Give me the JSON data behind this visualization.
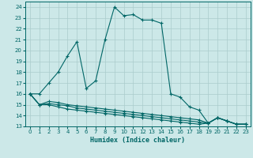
{
  "xlabel": "Humidex (Indice chaleur)",
  "bg_color": "#cce8e8",
  "grid_color": "#aacccc",
  "line_color": "#006666",
  "xlim": [
    -0.5,
    23.5
  ],
  "ylim": [
    13,
    24.5
  ],
  "xticks": [
    0,
    1,
    2,
    3,
    4,
    5,
    6,
    7,
    8,
    9,
    10,
    11,
    12,
    13,
    14,
    15,
    16,
    17,
    18,
    19,
    20,
    21,
    22,
    23
  ],
  "yticks": [
    13,
    14,
    15,
    16,
    17,
    18,
    19,
    20,
    21,
    22,
    23,
    24
  ],
  "series": [
    {
      "x": [
        0,
        1,
        2,
        3,
        4,
        5,
        6,
        7,
        8,
        9,
        10,
        11,
        12,
        13,
        14,
        15,
        16,
        17,
        18,
        19,
        20,
        21,
        22,
        23
      ],
      "y": [
        16.0,
        16.0,
        17.0,
        18.0,
        19.5,
        20.8,
        16.5,
        17.2,
        21.0,
        24.0,
        23.2,
        23.3,
        22.8,
        22.8,
        22.5,
        16.0,
        15.7,
        14.8,
        14.5,
        13.3,
        13.8,
        13.5,
        13.2,
        13.2
      ]
    },
    {
      "x": [
        0,
        1,
        2,
        3,
        4,
        5,
        6,
        7,
        8,
        9,
        10,
        11,
        12,
        13,
        14,
        15,
        16,
        17,
        18,
        19,
        20,
        21,
        22,
        23
      ],
      "y": [
        16.0,
        15.0,
        15.3,
        15.2,
        15.0,
        14.9,
        14.8,
        14.7,
        14.6,
        14.5,
        14.4,
        14.3,
        14.2,
        14.1,
        14.0,
        13.9,
        13.8,
        13.7,
        13.6,
        13.3,
        13.8,
        13.5,
        13.2,
        13.2
      ]
    },
    {
      "x": [
        0,
        1,
        2,
        3,
        4,
        5,
        6,
        7,
        8,
        9,
        10,
        11,
        12,
        13,
        14,
        15,
        16,
        17,
        18,
        19,
        20,
        21,
        22,
        23
      ],
      "y": [
        16.0,
        15.0,
        15.1,
        15.0,
        14.9,
        14.7,
        14.6,
        14.5,
        14.4,
        14.3,
        14.2,
        14.1,
        14.0,
        13.9,
        13.8,
        13.7,
        13.6,
        13.5,
        13.4,
        13.3,
        13.8,
        13.5,
        13.2,
        13.2
      ]
    },
    {
      "x": [
        0,
        1,
        2,
        3,
        4,
        5,
        6,
        7,
        8,
        9,
        10,
        11,
        12,
        13,
        14,
        15,
        16,
        17,
        18,
        19,
        20,
        21,
        22,
        23
      ],
      "y": [
        16.0,
        15.0,
        15.0,
        14.8,
        14.6,
        14.5,
        14.4,
        14.3,
        14.2,
        14.1,
        14.0,
        13.9,
        13.8,
        13.7,
        13.6,
        13.5,
        13.4,
        13.3,
        13.2,
        13.3,
        13.8,
        13.5,
        13.2,
        13.2
      ]
    }
  ]
}
